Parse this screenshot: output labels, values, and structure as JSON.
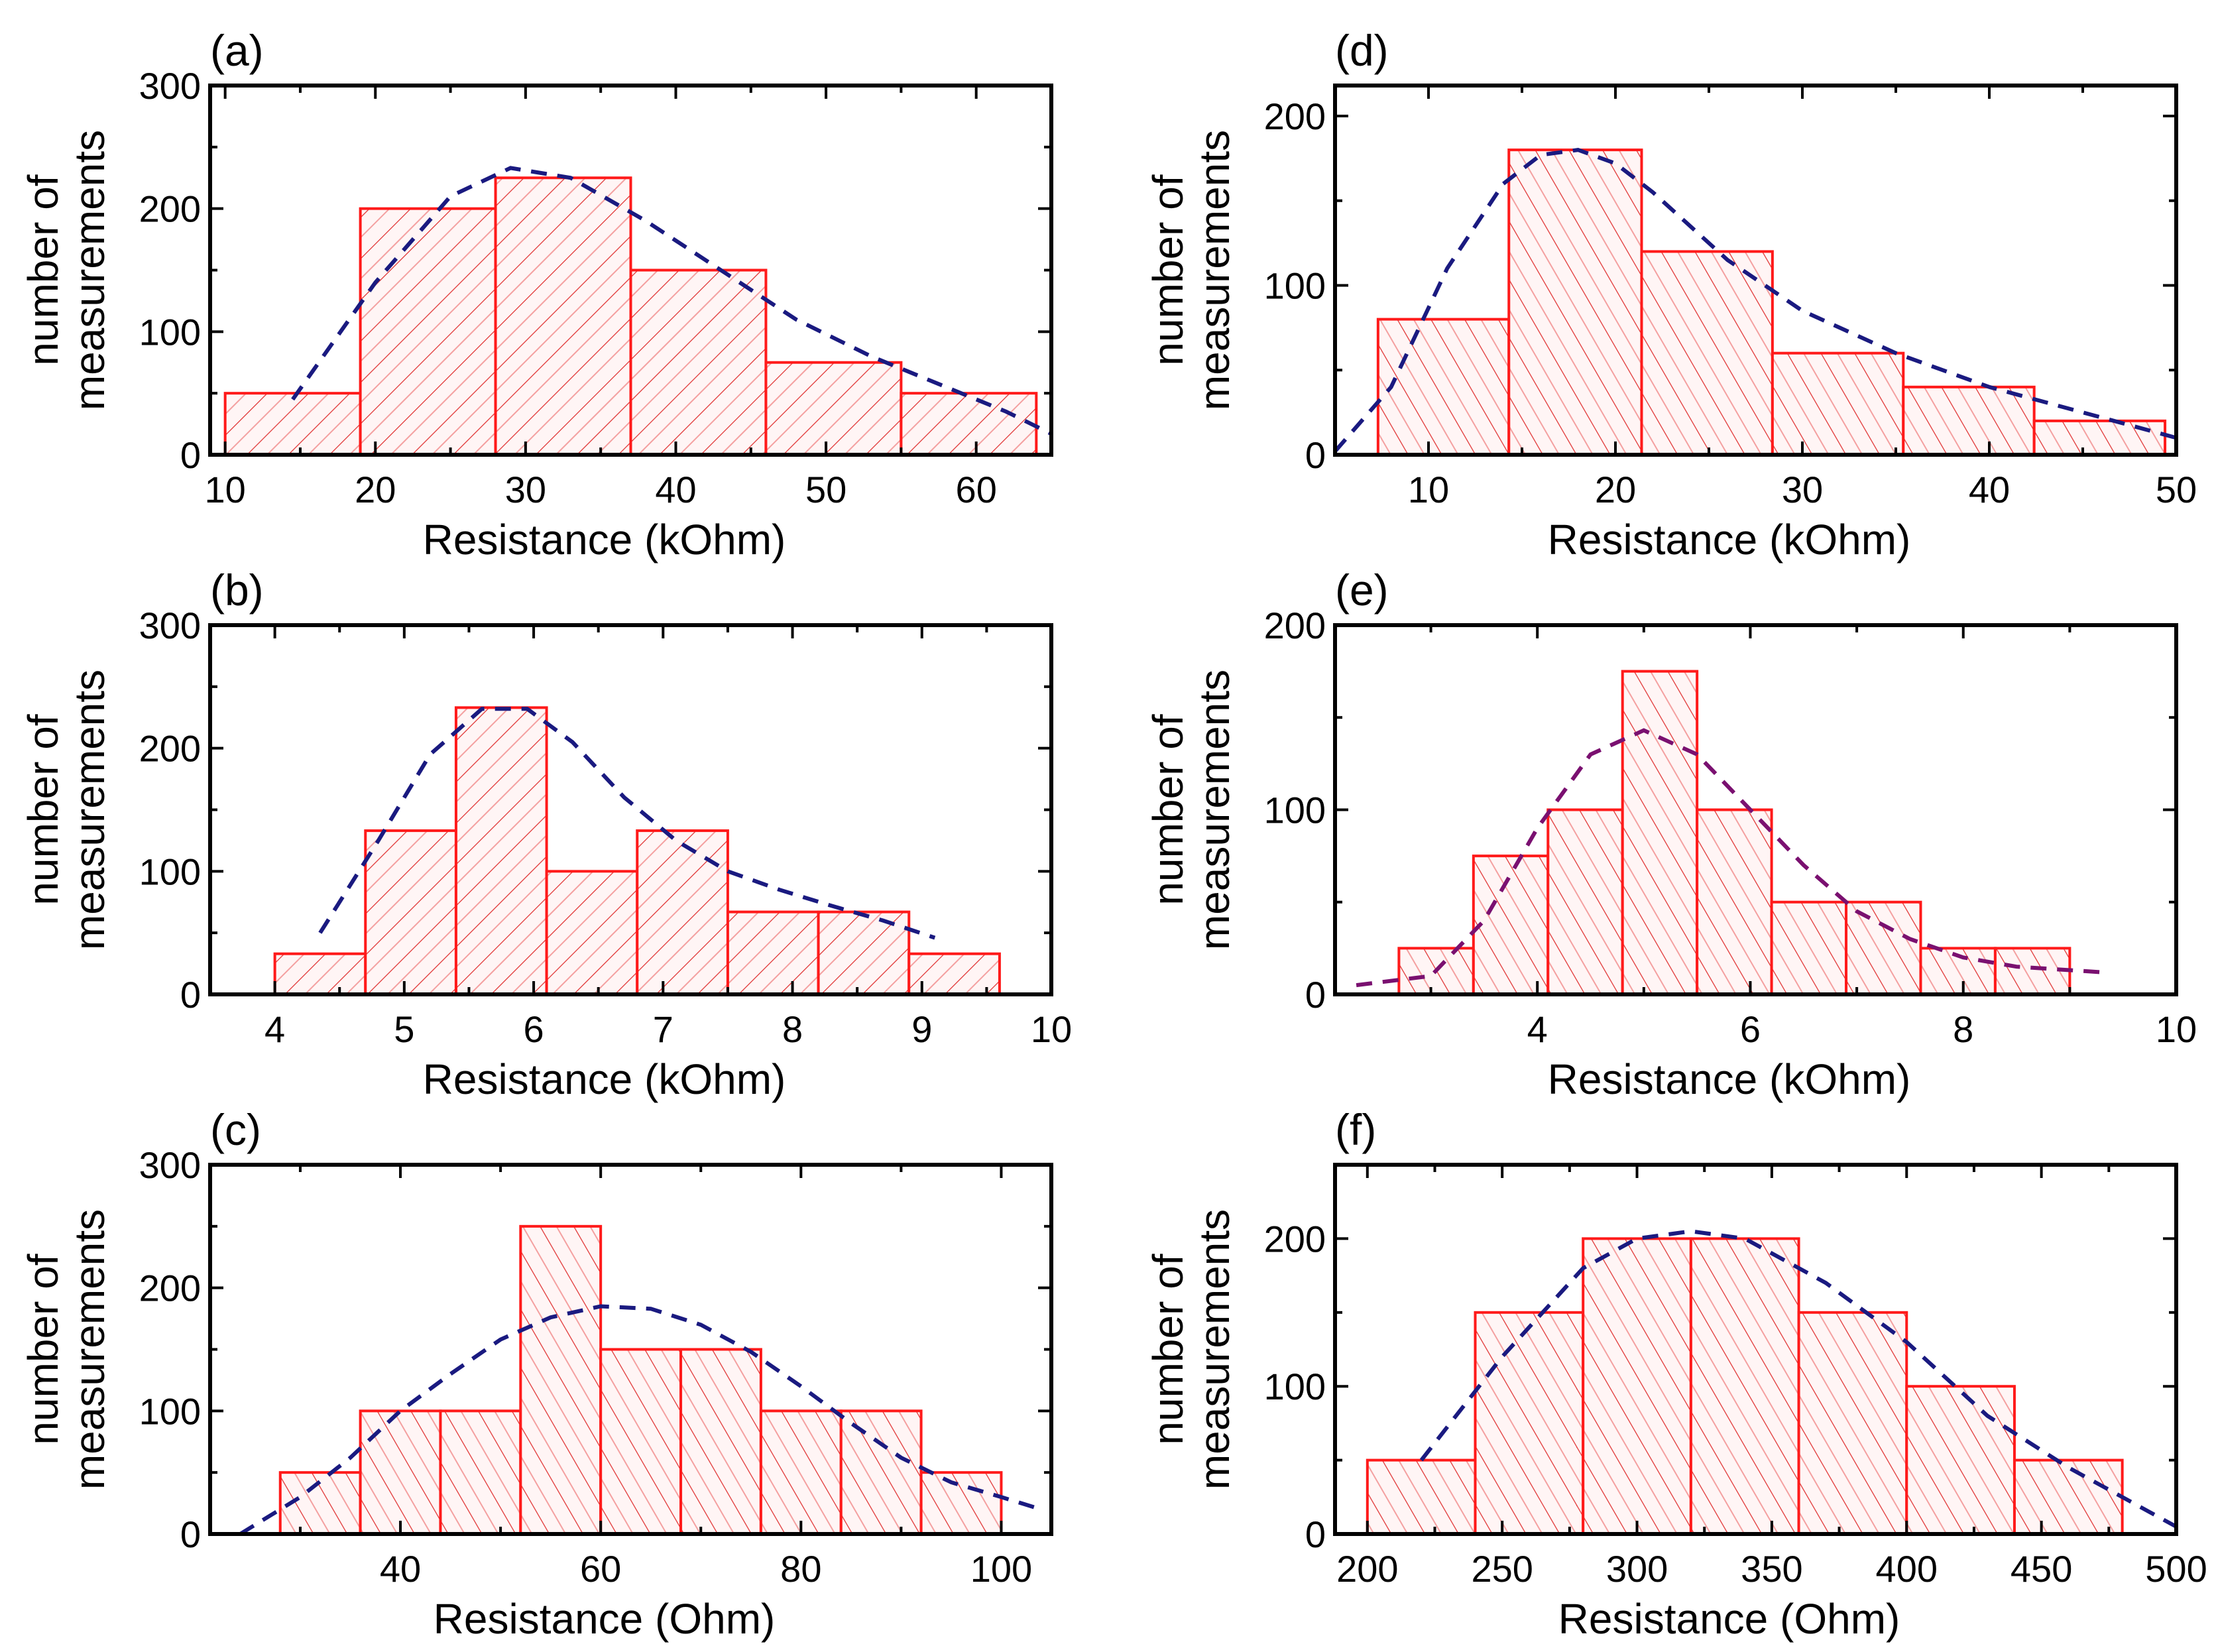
{
  "colors": {
    "bar": "#ff1a1a",
    "hatch": "#e03030",
    "fit": "#1a1a80",
    "fit_e": "#7a1070",
    "axis": "#000000"
  },
  "chart_data": [
    {
      "panel": "(a)",
      "type": "bar",
      "xlabel": "Resistance (kOhm)",
      "ylabel": [
        "number of",
        "measurements"
      ],
      "xlim": [
        9,
        65
      ],
      "ylim": [
        0,
        300
      ],
      "xticks": [
        10,
        20,
        30,
        40,
        50,
        60
      ],
      "xminor": 5,
      "yticks": [
        0,
        100,
        200,
        300
      ],
      "yminor": 50,
      "hatch": "forward",
      "bin_edges": [
        10,
        19,
        28,
        37,
        46,
        55,
        64
      ],
      "values": [
        50,
        200,
        225,
        150,
        75,
        50
      ],
      "fit": [
        [
          14.5,
          45
        ],
        [
          20,
          140
        ],
        [
          25,
          210
        ],
        [
          29,
          233
        ],
        [
          33,
          225
        ],
        [
          38,
          190
        ],
        [
          43,
          150
        ],
        [
          48,
          110
        ],
        [
          53,
          80
        ],
        [
          58,
          55
        ],
        [
          62,
          35
        ],
        [
          65,
          17
        ]
      ]
    },
    {
      "panel": "(b)",
      "type": "bar",
      "xlabel": "Resistance (kOhm)",
      "ylabel": [
        "number of",
        "measurements"
      ],
      "xlim": [
        3.5,
        10
      ],
      "ylim": [
        0,
        300
      ],
      "xticks": [
        4,
        5,
        6,
        7,
        8,
        9,
        10
      ],
      "xminor": 0.5,
      "yticks": [
        0,
        100,
        200,
        300
      ],
      "yminor": 50,
      "hatch": "forward",
      "bin_edges": [
        4,
        4.7,
        5.4,
        6.1,
        6.8,
        7.5,
        8.2,
        8.9,
        9.6
      ],
      "values": [
        33,
        133,
        233,
        100,
        133,
        67,
        67,
        33
      ],
      "fit": [
        [
          4.35,
          50
        ],
        [
          4.8,
          125
        ],
        [
          5.2,
          195
        ],
        [
          5.6,
          232
        ],
        [
          5.95,
          232
        ],
        [
          6.3,
          205
        ],
        [
          6.7,
          160
        ],
        [
          7.1,
          125
        ],
        [
          7.5,
          100
        ],
        [
          7.9,
          85
        ],
        [
          8.3,
          72
        ],
        [
          8.7,
          60
        ],
        [
          9.1,
          46
        ]
      ]
    },
    {
      "panel": "(c)",
      "type": "bar",
      "xlabel": "Resistance (Ohm)",
      "ylabel": [
        "number of",
        "measurements"
      ],
      "xlim": [
        21,
        105
      ],
      "ylim": [
        0,
        300
      ],
      "xticks": [
        40,
        60,
        80,
        100
      ],
      "xminor": 10,
      "yticks": [
        0,
        100,
        200,
        300
      ],
      "yminor": 50,
      "hatch": "back",
      "bin_edges": [
        28,
        36,
        44,
        52,
        60,
        68,
        76,
        84,
        92,
        100
      ],
      "values": [
        50,
        100,
        100,
        250,
        150,
        150,
        100,
        100,
        50
      ],
      "fit": [
        [
          24,
          0
        ],
        [
          30,
          30
        ],
        [
          35,
          62
        ],
        [
          40,
          100
        ],
        [
          45,
          130
        ],
        [
          50,
          158
        ],
        [
          55,
          176
        ],
        [
          60,
          185
        ],
        [
          65,
          183
        ],
        [
          70,
          170
        ],
        [
          75,
          148
        ],
        [
          80,
          120
        ],
        [
          85,
          90
        ],
        [
          90,
          62
        ],
        [
          95,
          42
        ],
        [
          100,
          30
        ],
        [
          104,
          20
        ]
      ]
    },
    {
      "panel": "(d)",
      "type": "bar",
      "xlabel": "Resistance (kOhm)",
      "ylabel": [
        "number of",
        "measurements"
      ],
      "xlim": [
        5,
        50
      ],
      "ylim": [
        0,
        218
      ],
      "xticks": [
        10,
        20,
        30,
        40,
        50
      ],
      "xminor": 5,
      "yticks": [
        0,
        100,
        200
      ],
      "yminor": 50,
      "hatch": "back",
      "bin_edges": [
        7.3,
        14.3,
        21.4,
        28.4,
        35.4,
        42.4,
        49.4
      ],
      "values": [
        80,
        180,
        120,
        60,
        40,
        20
      ],
      "fit": [
        [
          5,
          2
        ],
        [
          8,
          40
        ],
        [
          11,
          110
        ],
        [
          14,
          160
        ],
        [
          16,
          177
        ],
        [
          18,
          180
        ],
        [
          20,
          172
        ],
        [
          22,
          155
        ],
        [
          26,
          115
        ],
        [
          30,
          85
        ],
        [
          35,
          60
        ],
        [
          40,
          40
        ],
        [
          45,
          25
        ],
        [
          50,
          10
        ]
      ]
    },
    {
      "panel": "(e)",
      "type": "bar",
      "xlabel": "Resistance (kOhm)",
      "ylabel": [
        "number of",
        "measurements"
      ],
      "xlim": [
        2.1,
        10
      ],
      "ylim": [
        0,
        200
      ],
      "xticks": [
        4,
        6,
        8,
        10
      ],
      "xminor": 1,
      "yticks": [
        0,
        100,
        200
      ],
      "yminor": 50,
      "hatch": "back",
      "bin_edges": [
        2.7,
        3.4,
        4.1,
        4.8,
        5.5,
        6.2,
        6.9,
        7.6,
        8.3,
        9.0
      ],
      "values": [
        25,
        75,
        100,
        175,
        100,
        50,
        50,
        25,
        25
      ],
      "fit": [
        [
          2.3,
          5
        ],
        [
          3,
          10
        ],
        [
          3.5,
          40
        ],
        [
          4,
          90
        ],
        [
          4.5,
          130
        ],
        [
          5,
          143
        ],
        [
          5.5,
          130
        ],
        [
          6,
          100
        ],
        [
          6.5,
          70
        ],
        [
          7,
          45
        ],
        [
          7.5,
          30
        ],
        [
          8,
          20
        ],
        [
          8.5,
          15
        ],
        [
          9.3,
          12
        ]
      ]
    },
    {
      "panel": "(f)",
      "type": "bar",
      "xlabel": "Resistance (Ohm)",
      "ylabel": [
        "number of",
        "measurements"
      ],
      "xlim": [
        188,
        500
      ],
      "ylim": [
        0,
        250
      ],
      "xticks": [
        200,
        250,
        300,
        350,
        400,
        450,
        500
      ],
      "xminor": 25,
      "yticks": [
        0,
        100,
        200
      ],
      "yminor": 50,
      "hatch": "back",
      "bin_edges": [
        200,
        240,
        280,
        320,
        360,
        400,
        440,
        480
      ],
      "values": [
        50,
        150,
        200,
        200,
        150,
        100,
        50
      ],
      "fit": [
        [
          220,
          50
        ],
        [
          250,
          120
        ],
        [
          280,
          180
        ],
        [
          300,
          200
        ],
        [
          320,
          205
        ],
        [
          340,
          200
        ],
        [
          370,
          170
        ],
        [
          400,
          130
        ],
        [
          430,
          80
        ],
        [
          460,
          45
        ],
        [
          490,
          15
        ],
        [
          500,
          5
        ]
      ]
    }
  ]
}
